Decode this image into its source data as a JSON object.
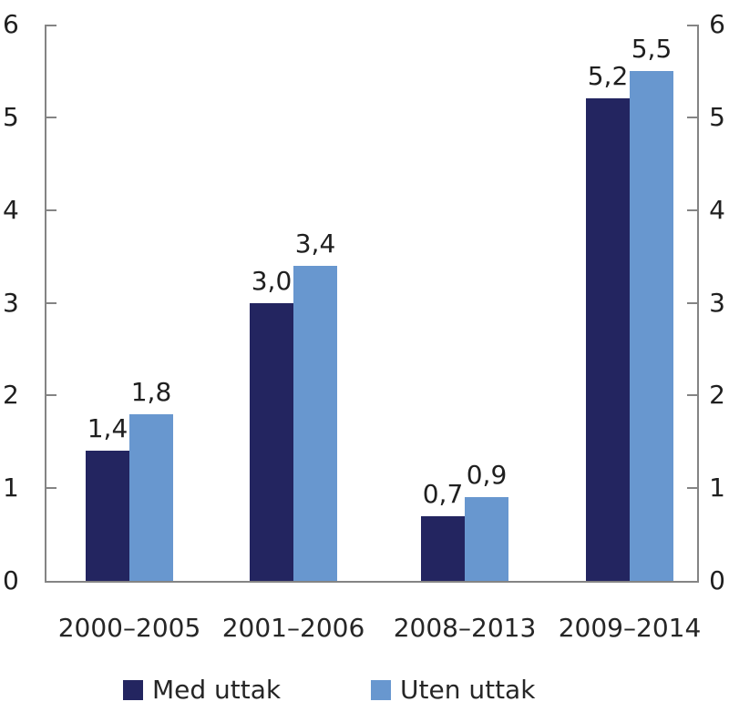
{
  "chart_data": {
    "type": "bar",
    "title": "",
    "xlabel": "",
    "ylabel": "",
    "categories": [
      "2000–2005",
      "2001–2006",
      "2008–2013",
      "2009–2014"
    ],
    "series": [
      {
        "name": "Med uttak",
        "color": "#232560",
        "values": [
          1.4,
          3.0,
          0.7,
          5.2
        ],
        "labels": [
          "1,4",
          "3,0",
          "0,7",
          "5,2"
        ]
      },
      {
        "name": "Uten uttak",
        "color": "#6897cf",
        "values": [
          1.8,
          3.4,
          0.9,
          5.5
        ],
        "labels": [
          "1,8",
          "3,4",
          "0,9",
          "5,5"
        ]
      }
    ],
    "ylim": [
      0,
      6
    ],
    "yticks": [
      0,
      1,
      2,
      3,
      4,
      5,
      6
    ],
    "y_axis_sides": "both",
    "axis_color": "#848484",
    "grid": false,
    "value_labels": true,
    "legend_position": "bottom"
  }
}
